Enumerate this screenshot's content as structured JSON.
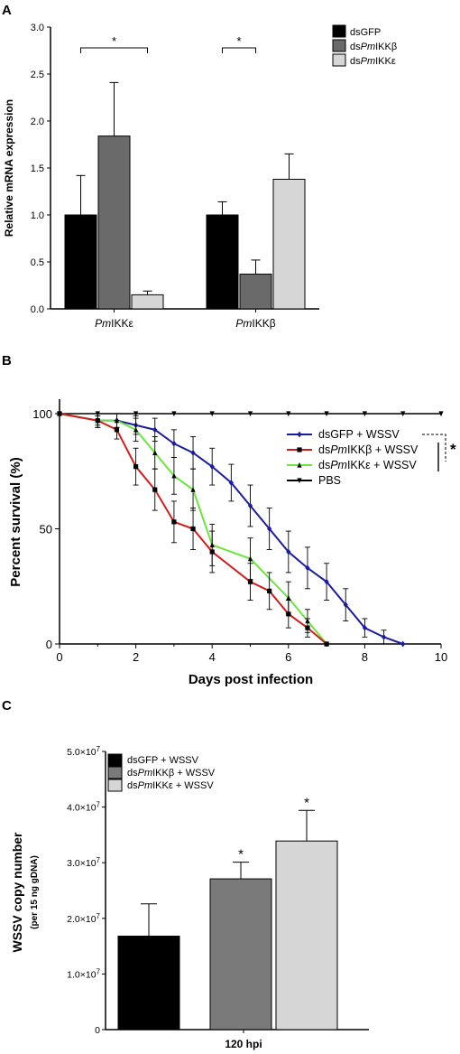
{
  "panels": {
    "a": "A",
    "b": "B",
    "c": "C"
  },
  "chart_data": [
    {
      "type": "bar",
      "panel": "A",
      "ylabel": "Relative mRNA expression",
      "ylim": [
        0,
        3.0
      ],
      "yticks": [
        "0.0",
        "0.5",
        "1.0",
        "1.5",
        "2.0",
        "2.5",
        "3.0"
      ],
      "categories": [
        {
          "prefix": "Pm",
          "suffix": "IKKε"
        },
        {
          "prefix": "Pm",
          "suffix": "IKKβ"
        }
      ],
      "series": [
        {
          "name": {
            "pre": "dsGFP",
            "it": "",
            "post": ""
          },
          "color": "#000000",
          "values": [
            1.0,
            1.0
          ],
          "errors": [
            0.42,
            0.14
          ]
        },
        {
          "name": {
            "pre": "ds",
            "it": "Pm",
            "post": "IKKβ"
          },
          "color": "#6a6a6a",
          "values": [
            1.84,
            0.37
          ],
          "errors": [
            0.57,
            0.15
          ]
        },
        {
          "name": {
            "pre": "ds",
            "it": "Pm",
            "post": "IKKε"
          },
          "color": "#d6d6d6",
          "values": [
            0.15,
            1.38
          ],
          "errors": [
            0.04,
            0.27
          ]
        }
      ],
      "significance": [
        {
          "label": "*",
          "group": 0,
          "from_series": 0,
          "to_series": 2
        },
        {
          "label": "*",
          "group": 1,
          "from_series": 0,
          "to_series": 1
        }
      ],
      "legend": "top-right"
    },
    {
      "type": "line",
      "panel": "B",
      "xlabel": "Days post infection",
      "ylabel": "Percent survival (%)",
      "xlim": [
        0,
        10
      ],
      "ylim": [
        0,
        100
      ],
      "xticks": [
        "0",
        "2",
        "4",
        "6",
        "8",
        "10"
      ],
      "yticks": [
        "0",
        "50",
        "100"
      ],
      "series": [
        {
          "name": {
            "pre": "dsGFP + WSSV",
            "it": "",
            "post": ""
          },
          "color": "#1c1c9e",
          "marker": "diamond",
          "x": [
            0,
            1,
            1.5,
            2,
            2.5,
            3,
            3.5,
            4,
            4.5,
            5,
            5.5,
            6,
            6.5,
            7,
            7.5,
            8,
            8.5,
            9
          ],
          "y": [
            100,
            97,
            97,
            95,
            93,
            87,
            83,
            77,
            70,
            60,
            50,
            40,
            33,
            27,
            17,
            7,
            3,
            0
          ],
          "err": [
            0,
            2,
            3,
            4,
            5,
            6,
            7,
            8,
            8,
            9,
            9,
            9,
            9,
            8,
            7,
            4,
            3,
            0
          ]
        },
        {
          "name": {
            "pre": "ds",
            "it": "Pm",
            "post": "IKKβ + WSSV"
          },
          "color": "#d21c1c",
          "marker": "square",
          "x": [
            0,
            1,
            1.5,
            2,
            2.5,
            3,
            3.5,
            4,
            5,
            5.5,
            6,
            6.5,
            7
          ],
          "y": [
            100,
            97,
            93,
            77,
            67,
            53,
            50,
            40,
            27,
            23,
            13,
            7,
            0
          ],
          "err": [
            0,
            3,
            4,
            8,
            9,
            9,
            9,
            9,
            8,
            8,
            6,
            4,
            0
          ]
        },
        {
          "name": {
            "pre": "ds",
            "it": "Pm",
            "post": "IKKε + WSSV"
          },
          "color": "#6be63c",
          "marker": "triangle",
          "x": [
            0,
            1,
            1.5,
            2,
            2.5,
            3,
            3.5,
            4,
            5,
            6,
            6.5,
            7
          ],
          "y": [
            100,
            97,
            97,
            93,
            83,
            73,
            67,
            43,
            37,
            20,
            10,
            0
          ],
          "err": [
            0,
            3,
            3,
            5,
            7,
            8,
            9,
            9,
            9,
            7,
            5,
            0
          ]
        },
        {
          "name": {
            "pre": "PBS",
            "it": "",
            "post": ""
          },
          "color": "#000000",
          "marker": "triangle-down",
          "x": [
            0,
            1,
            2,
            3,
            4,
            5,
            6,
            7,
            8,
            9,
            10
          ],
          "y": [
            100,
            100,
            100,
            100,
            100,
            100,
            100,
            100,
            100,
            100,
            100
          ],
          "err": [
            0,
            0,
            0,
            0,
            0,
            0,
            0,
            0,
            0,
            0,
            0
          ]
        }
      ],
      "significance": [
        {
          "label": "*"
        }
      ],
      "legend": "top-right"
    },
    {
      "type": "bar",
      "panel": "C",
      "ylabel": "WSSV copy number",
      "ylabel_sub": "(per 15 ng gDNA)",
      "xlabel": "120 hpi",
      "ylim": [
        0,
        50000000
      ],
      "yticks": [
        {
          "mant": "0",
          "exp": ""
        },
        {
          "mant": "1.0×10",
          "exp": "7"
        },
        {
          "mant": "2.0×10",
          "exp": "7"
        },
        {
          "mant": "3.0×10",
          "exp": "7"
        },
        {
          "mant": "4.0×10",
          "exp": "7"
        },
        {
          "mant": "5.0×10",
          "exp": "7"
        }
      ],
      "series": [
        {
          "name": {
            "pre": "dsGFP + WSSV",
            "it": "",
            "post": ""
          },
          "color": "#000000",
          "value": 16800000,
          "error": 5800000,
          "sig": ""
        },
        {
          "name": {
            "pre": "ds",
            "it": "Pm",
            "post": "IKKβ + WSSV"
          },
          "color": "#7a7a7a",
          "value": 27100000,
          "error": 3000000,
          "sig": "*"
        },
        {
          "name": {
            "pre": "ds",
            "it": "Pm",
            "post": "IKKε + WSSV"
          },
          "color": "#d6d6d6",
          "value": 33900000,
          "error": 5500000,
          "sig": "*"
        }
      ],
      "legend": "top-left"
    }
  ]
}
